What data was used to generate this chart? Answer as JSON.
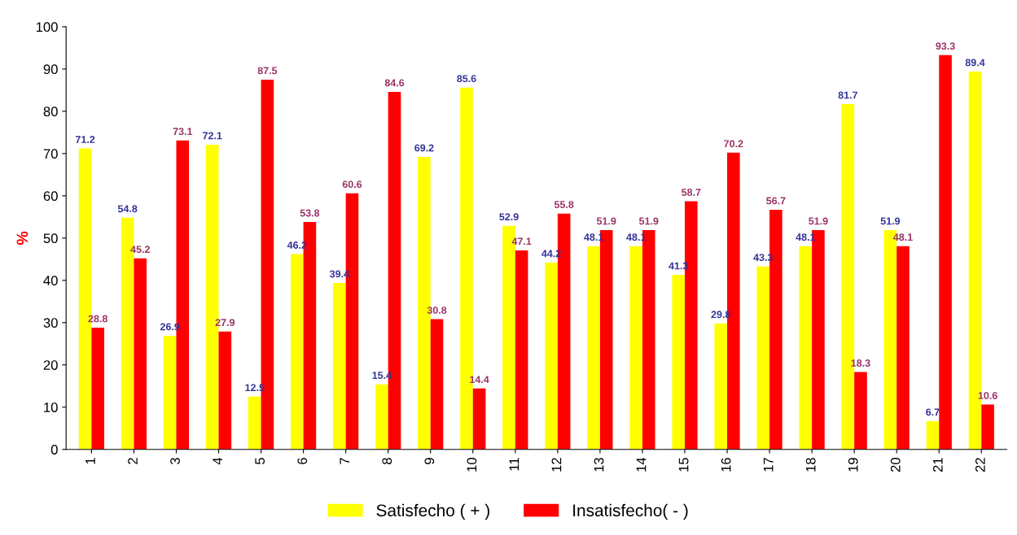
{
  "chart_data": {
    "type": "bar",
    "ylabel": "%",
    "categories": [
      "1",
      "2",
      "3",
      "4",
      "5",
      "6",
      "7",
      "8",
      "9",
      "10",
      "11",
      "12",
      "13",
      "14",
      "15",
      "16",
      "17",
      "18",
      "19",
      "20",
      "21",
      "22"
    ],
    "series": [
      {
        "name": "Satisfecho ( + )",
        "color": "#ffff00",
        "values": [
          71.2,
          54.8,
          26.9,
          72.1,
          12.5,
          46.2,
          39.4,
          15.4,
          69.2,
          85.6,
          52.9,
          44.2,
          48.1,
          48.1,
          41.3,
          29.8,
          43.3,
          48.1,
          81.7,
          51.9,
          6.7,
          89.4
        ]
      },
      {
        "name": "Insatisfecho( - )",
        "color": "#ff0000",
        "values": [
          28.8,
          45.2,
          73.1,
          27.9,
          87.5,
          53.8,
          60.6,
          84.6,
          30.8,
          14.4,
          47.1,
          55.8,
          51.9,
          51.9,
          58.7,
          70.2,
          56.7,
          51.9,
          18.3,
          48.1,
          93.3,
          10.6
        ]
      }
    ],
    "ylim": [
      0,
      100
    ],
    "yticks": [
      0,
      10,
      20,
      30,
      40,
      50,
      60,
      70,
      80,
      90,
      100
    ],
    "data_labels": true,
    "grid": false,
    "legend": "bottom"
  }
}
